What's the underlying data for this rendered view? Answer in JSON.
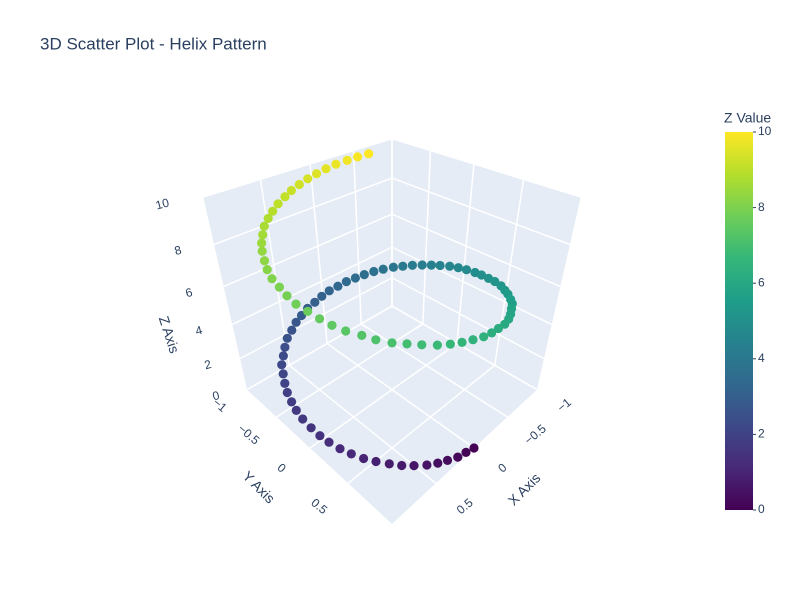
{
  "chart_data": {
    "type": "scatter3d",
    "title": "3D Scatter Plot - Helix Pattern",
    "x_label": "X Axis",
    "y_label": "Y Axis",
    "z_label": "Z Axis",
    "colorbar_title": "Z Value",
    "x": [
      0,
      0.1,
      0.2,
      0.3,
      0.39,
      0.48,
      0.57,
      0.65,
      0.72,
      0.79,
      0.85,
      0.9,
      0.94,
      0.97,
      0.99,
      1.0,
      1.0,
      0.99,
      0.97,
      0.94,
      0.9,
      0.85,
      0.8,
      0.73,
      0.66,
      0.58,
      0.49,
      0.4,
      0.31,
      0.21,
      0.11,
      0.01,
      -0.09,
      -0.19,
      -0.29,
      -0.38,
      -0.47,
      -0.56,
      -0.64,
      -0.72,
      -0.78,
      -0.84,
      -0.89,
      -0.93,
      -0.96,
      -0.99,
      -1.0,
      -1.0,
      -0.99,
      -0.97,
      -0.94,
      -0.91,
      -0.86,
      -0.8,
      -0.74,
      -0.66,
      -0.59,
      -0.5,
      -0.41,
      -0.32,
      -0.22,
      -0.12,
      -0.02,
      0.08,
      0.18,
      0.28,
      0.37,
      0.46,
      0.55,
      0.63,
      0.71,
      0.78,
      0.83,
      0.89,
      0.93,
      0.96,
      0.98,
      1.0,
      1.0,
      0.99,
      0.98,
      0.95,
      0.91,
      0.86,
      0.81,
      0.75,
      0.68,
      0.6,
      0.52,
      0.43,
      0.33,
      0.24,
      0.14,
      0.04,
      -0.06,
      -0.16,
      -0.26,
      -0.36,
      -0.45,
      -0.54
    ],
    "y": [
      1,
      0.99,
      0.98,
      0.95,
      0.92,
      0.88,
      0.82,
      0.76,
      0.69,
      0.61,
      0.53,
      0.44,
      0.35,
      0.25,
      0.16,
      0.06,
      -0.05,
      -0.15,
      -0.24,
      -0.34,
      -0.43,
      -0.52,
      -0.61,
      -0.68,
      -0.75,
      -0.82,
      -0.87,
      -0.92,
      -0.95,
      -0.98,
      -0.99,
      -1.0,
      -1.0,
      -0.98,
      -0.96,
      -0.92,
      -0.88,
      -0.83,
      -0.77,
      -0.7,
      -0.62,
      -0.54,
      -0.45,
      -0.36,
      -0.27,
      -0.17,
      -0.07,
      0.03,
      0.14,
      0.23,
      0.33,
      0.42,
      0.52,
      0.6,
      0.67,
      0.75,
      0.81,
      0.86,
      0.91,
      0.95,
      0.98,
      0.99,
      1.0,
      1.0,
      0.98,
      0.96,
      0.93,
      0.89,
      0.83,
      0.77,
      0.71,
      0.63,
      0.55,
      0.46,
      0.37,
      0.28,
      0.18,
      0.08,
      -0.02,
      -0.12,
      -0.22,
      -0.32,
      -0.41,
      -0.51,
      -0.59,
      -0.66,
      -0.74,
      -0.8,
      -0.85,
      -0.9,
      -0.94,
      -0.97,
      -0.99,
      -1.0,
      -1.0,
      -0.99,
      -0.97,
      -0.93,
      -0.89,
      -0.84
    ],
    "z": [
      0,
      0.1,
      0.2,
      0.3,
      0.4,
      0.51,
      0.61,
      0.71,
      0.81,
      0.91,
      1.01,
      1.11,
      1.21,
      1.31,
      1.41,
      1.52,
      1.62,
      1.72,
      1.82,
      1.92,
      2.02,
      2.12,
      2.22,
      2.32,
      2.42,
      2.53,
      2.63,
      2.73,
      2.83,
      2.93,
      3.03,
      3.13,
      3.23,
      3.33,
      3.43,
      3.54,
      3.64,
      3.74,
      3.84,
      3.94,
      4.04,
      4.14,
      4.24,
      4.34,
      4.44,
      4.55,
      4.65,
      4.75,
      4.85,
      4.95,
      5.05,
      5.15,
      5.25,
      5.35,
      5.45,
      5.56,
      5.66,
      5.76,
      5.86,
      5.96,
      6.06,
      6.16,
      6.26,
      6.36,
      6.46,
      6.57,
      6.67,
      6.77,
      6.87,
      6.97,
      7.07,
      7.17,
      7.27,
      7.37,
      7.47,
      7.58,
      7.68,
      7.78,
      7.88,
      7.98,
      8.08,
      8.18,
      8.28,
      8.38,
      8.48,
      8.59,
      8.69,
      8.79,
      8.89,
      8.99,
      9.09,
      9.19,
      9.29,
      9.39,
      9.49,
      9.6,
      9.7,
      9.8,
      9.9,
      10
    ],
    "xlim": [
      -1,
      1
    ],
    "ylim": [
      -1,
      1
    ],
    "zlim": [
      0,
      10
    ],
    "xticks": [
      {
        "value": -1,
        "label": "−1"
      },
      {
        "value": -0.5,
        "label": "−0.5"
      },
      0,
      0.5
    ],
    "yticks": [
      {
        "value": -1,
        "label": "−1"
      },
      {
        "value": -0.5,
        "label": "−0.5"
      },
      0,
      0.5
    ],
    "zticks": [
      0,
      2,
      4,
      6,
      8,
      10
    ],
    "clim": [
      0,
      10
    ],
    "cticks": [
      0,
      2,
      4,
      6,
      8,
      10
    ],
    "colorscale": [
      "#440154",
      "#482878",
      "#3e4989",
      "#31688e",
      "#26828e",
      "#1f9e89",
      "#35b779",
      "#6ece58",
      "#b5de2b",
      "#fde725"
    ],
    "grid": true
  }
}
